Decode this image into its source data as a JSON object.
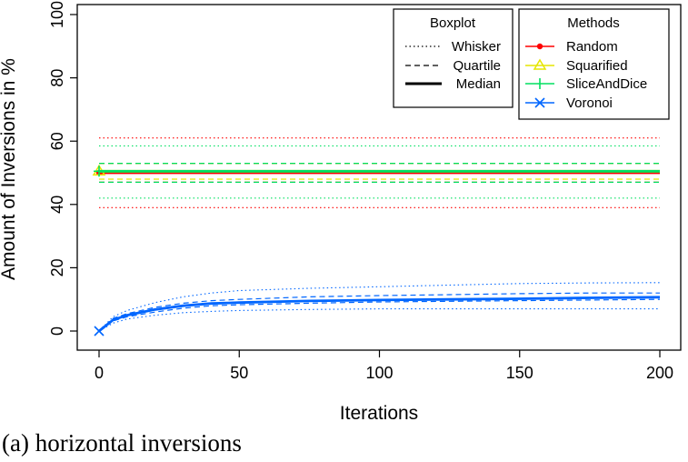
{
  "caption": "(a) horizontal inversions",
  "chart_data": {
    "type": "line",
    "title": "",
    "xlabel": "Iterations",
    "ylabel": "Amount of Inversions in %",
    "xlim": [
      0,
      200
    ],
    "ylim": [
      0,
      100
    ],
    "x_ticks": [
      0,
      50,
      100,
      150,
      200
    ],
    "y_ticks": [
      0,
      20,
      40,
      60,
      80,
      100
    ],
    "grid": false,
    "x": [
      0,
      5,
      10,
      20,
      30,
      40,
      50,
      75,
      100,
      125,
      150,
      175,
      200
    ],
    "series": [
      {
        "name": "Random",
        "color": "#ff0000",
        "marker": "filled-circle",
        "median": [
          50,
          50,
          50,
          50,
          50,
          50,
          50,
          50,
          50,
          50,
          50,
          50,
          50
        ],
        "quartile_low": [
          47,
          47,
          47,
          47,
          47,
          47,
          47,
          47,
          47,
          47,
          47,
          47,
          47
        ],
        "quartile_high": [
          53,
          53,
          53,
          53,
          53,
          53,
          53,
          53,
          53,
          53,
          53,
          53,
          53
        ],
        "whisker_low": [
          39,
          39,
          39,
          39,
          39,
          39,
          39,
          39,
          39,
          39,
          39,
          39,
          39
        ],
        "whisker_high": [
          61,
          61,
          61,
          61,
          61,
          61,
          61,
          61,
          61,
          61,
          61,
          61,
          61
        ]
      },
      {
        "name": "Squarified",
        "color": "#e6e600",
        "marker": "triangle",
        "median": [
          50.5,
          50.5,
          50.5,
          50.5,
          50.5,
          50.5,
          50.5,
          50.5,
          50.5,
          50.5,
          50.5,
          50.5,
          50.5
        ],
        "quartile_low": [
          48,
          48,
          48,
          48,
          48,
          48,
          48,
          48,
          48,
          48,
          48,
          48,
          48
        ],
        "quartile_high": [
          53,
          53,
          53,
          53,
          53,
          53,
          53,
          53,
          53,
          53,
          53,
          53,
          53
        ]
      },
      {
        "name": "SliceAndDice",
        "color": "#00e060",
        "marker": "plus",
        "median": [
          50.5,
          50.5,
          50.5,
          50.5,
          50.5,
          50.5,
          50.5,
          50.5,
          50.5,
          50.5,
          50.5,
          50.5,
          50.5
        ],
        "quartile_low": [
          47,
          47,
          47,
          47,
          47,
          47,
          47,
          47,
          47,
          47,
          47,
          47,
          47
        ],
        "quartile_high": [
          53,
          53,
          53,
          53,
          53,
          53,
          53,
          53,
          53,
          53,
          53,
          53,
          53
        ],
        "whisker_low": [
          42,
          42,
          42,
          42,
          42,
          42,
          42,
          42,
          42,
          42,
          42,
          42,
          42
        ],
        "whisker_high": [
          58.5,
          58.5,
          58.5,
          58.5,
          58.5,
          58.5,
          58.5,
          58.5,
          58.5,
          58.5,
          58.5,
          58.5,
          58.5
        ]
      },
      {
        "name": "Voronoi",
        "color": "#0066ff",
        "marker": "x",
        "median": [
          0,
          3.5,
          5,
          6.8,
          8,
          8.7,
          9,
          9.5,
          9.8,
          10,
          10.2,
          10.5,
          10.7
        ],
        "quartile_low": [
          0,
          3.2,
          4.5,
          6,
          7.2,
          8,
          8.3,
          8.8,
          9.2,
          9.4,
          9.6,
          9.8,
          10
        ],
        "quartile_high": [
          0,
          4,
          5.5,
          7.5,
          8.8,
          9.6,
          10,
          10.8,
          11.2,
          11.5,
          11.8,
          12,
          12
        ],
        "whisker_low": [
          0,
          2.5,
          3.8,
          5,
          5.8,
          6.2,
          6.5,
          6.8,
          7,
          7,
          7,
          7,
          7
        ],
        "whisker_high": [
          0,
          4.5,
          6.5,
          9,
          10.8,
          12,
          12.8,
          13.5,
          14,
          14.5,
          15,
          15.2,
          15.3
        ]
      }
    ],
    "legends": [
      {
        "title": "Boxplot",
        "position": "top-right",
        "entries": [
          {
            "label": "Whisker",
            "line": "dotted"
          },
          {
            "label": "Quartile",
            "line": "dashed"
          },
          {
            "label": "Median",
            "line": "solid-thick"
          }
        ]
      },
      {
        "title": "Methods",
        "position": "top-right",
        "entries": [
          {
            "label": "Random"
          },
          {
            "label": "Squarified"
          },
          {
            "label": "SliceAndDice"
          },
          {
            "label": "Voronoi"
          }
        ]
      }
    ]
  }
}
